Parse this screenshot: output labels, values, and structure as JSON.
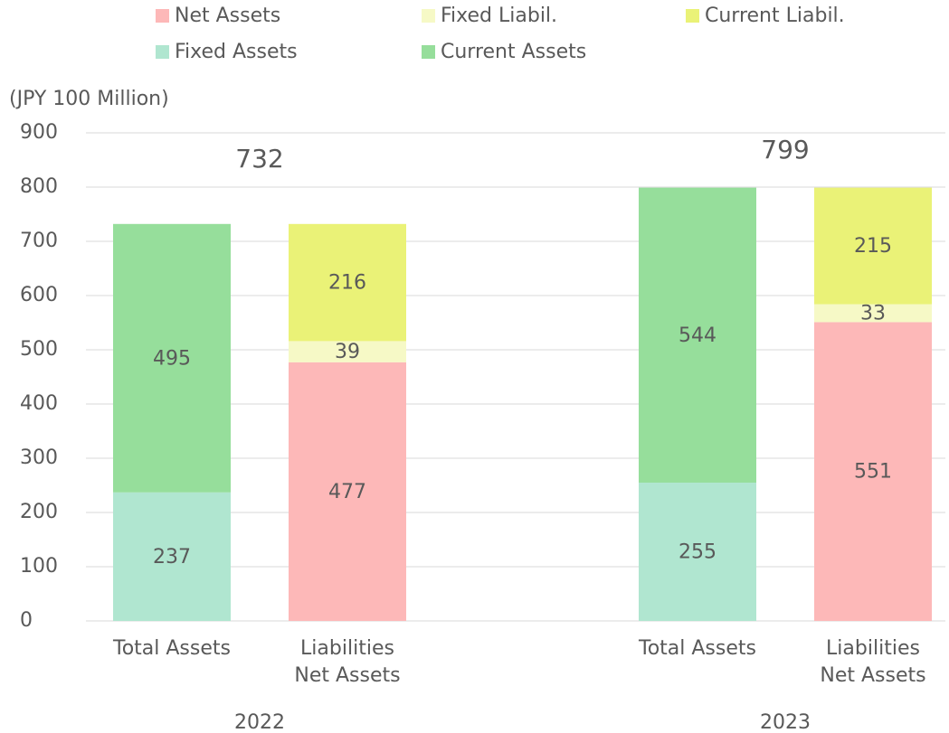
{
  "chart_data": {
    "type": "stacked_bar",
    "y_label": "(JPY 100 Million)",
    "categories": [
      [
        "Total Assets"
      ],
      [
        "Liabilities",
        "Net Assets"
      ],
      [
        "Total Assets"
      ],
      [
        "Liabilities",
        "Net Assets"
      ]
    ],
    "groups": [
      "2022",
      "2023"
    ],
    "totals": [
      732,
      799
    ],
    "series": [
      {
        "name": "Net Assets",
        "color": "#fdb8b8",
        "values": [
          null,
          477,
          null,
          551
        ]
      },
      {
        "name": "Fixed Liabil.",
        "color": "#f6f9c6",
        "values": [
          null,
          39,
          null,
          33
        ]
      },
      {
        "name": "Current Liabil.",
        "color": "#eaf277",
        "values": [
          null,
          216,
          null,
          215
        ]
      },
      {
        "name": "Fixed Assets",
        "color": "#b0e6d0",
        "values": [
          237,
          null,
          255,
          null
        ]
      },
      {
        "name": "Current Assets",
        "color": "#96de9b",
        "values": [
          495,
          null,
          544,
          null
        ]
      }
    ],
    "ylim": [
      0,
      900
    ],
    "yticks": [
      0,
      100,
      200,
      300,
      400,
      500,
      600,
      700,
      800,
      900
    ],
    "grid": true
  }
}
